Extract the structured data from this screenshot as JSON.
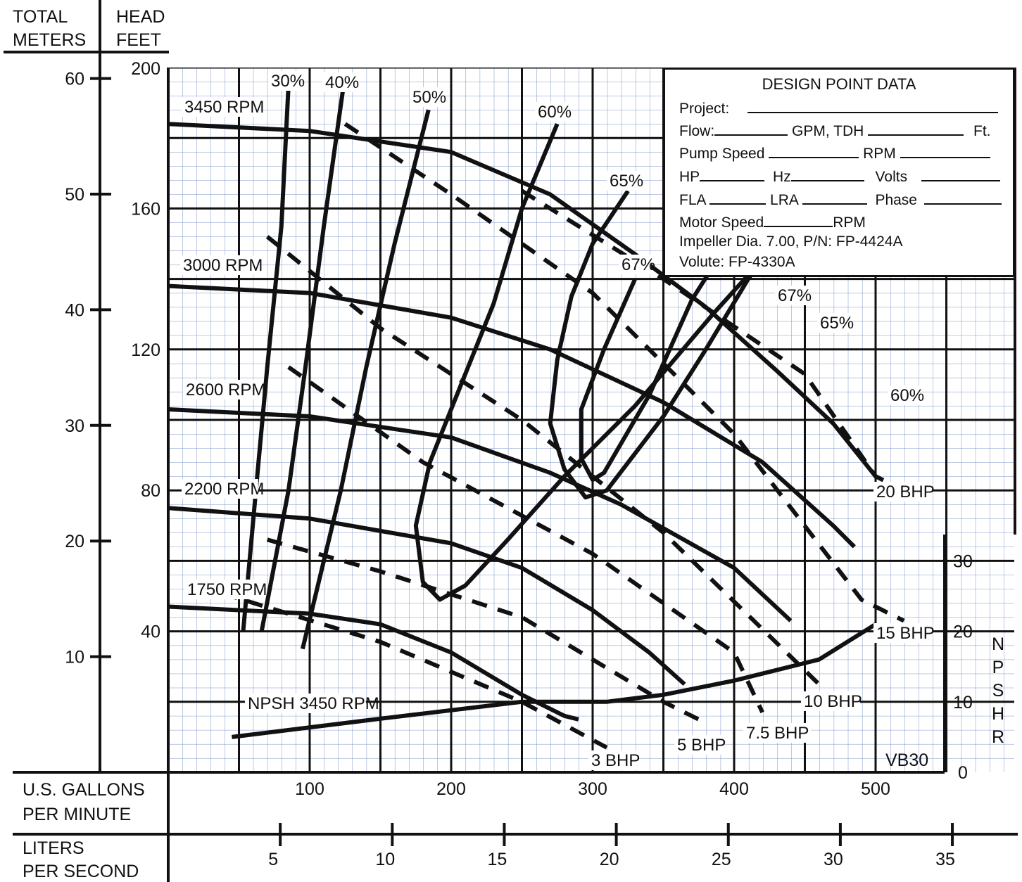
{
  "chart_data": {
    "type": "line",
    "header": {
      "left_axis_title": [
        "TOTAL",
        "METERS"
      ],
      "right_axis_title": [
        "HEAD",
        "FEET"
      ]
    },
    "x_axis": {
      "label": [
        "U.S. GALLONS",
        "PER MINUTE"
      ],
      "range": [
        0,
        550
      ],
      "ticks": [
        100,
        200,
        300,
        400,
        500
      ],
      "tick_labels": [
        "100",
        "200",
        "300",
        "400",
        "500"
      ]
    },
    "x2_axis": {
      "label": [
        "LITERS",
        "PER SECOND"
      ],
      "ticks": [
        5,
        10,
        15,
        20,
        25,
        30,
        35
      ],
      "tick_labels": [
        "5",
        "10",
        "15",
        "20",
        "25",
        "30",
        "35"
      ]
    },
    "y_axis_feet": {
      "range": [
        0,
        200
      ],
      "ticks": [
        40,
        80,
        120,
        160,
        200
      ],
      "tick_labels": [
        "40",
        "80",
        "120",
        "160",
        "200"
      ]
    },
    "y_axis_meters": {
      "ticks": [
        10,
        20,
        30,
        40,
        50,
        60
      ],
      "tick_labels": [
        "10",
        "20",
        "30",
        "40",
        "50",
        "60"
      ]
    },
    "npshr_axis": {
      "label": "NPSHR",
      "ticks": [
        0,
        10,
        20,
        30
      ],
      "tick_labels": [
        "0",
        "10",
        "20",
        "30"
      ]
    },
    "model": "VB30",
    "speed_curves": [
      {
        "name": "3450 RPM",
        "points": [
          [
            0,
            184
          ],
          [
            100,
            182
          ],
          [
            200,
            176
          ],
          [
            270,
            164
          ],
          [
            330,
            147
          ],
          [
            380,
            132
          ],
          [
            430,
            114
          ],
          [
            470,
            99
          ],
          [
            500,
            84
          ]
        ]
      },
      {
        "name": "3000 RPM",
        "points": [
          [
            0,
            138
          ],
          [
            100,
            136
          ],
          [
            200,
            129
          ],
          [
            270,
            120
          ],
          [
            350,
            105
          ],
          [
            420,
            88
          ],
          [
            470,
            70
          ],
          [
            485,
            64
          ]
        ]
      },
      {
        "name": "2600 RPM",
        "points": [
          [
            0,
            103
          ],
          [
            100,
            101
          ],
          [
            200,
            95
          ],
          [
            270,
            85
          ],
          [
            320,
            76
          ],
          [
            400,
            58
          ],
          [
            440,
            43
          ]
        ]
      },
      {
        "name": "2200 RPM",
        "points": [
          [
            0,
            75
          ],
          [
            100,
            72
          ],
          [
            200,
            65
          ],
          [
            250,
            58
          ],
          [
            300,
            46
          ],
          [
            340,
            34
          ],
          [
            365,
            25
          ]
        ]
      },
      {
        "name": "1750 RPM",
        "points": [
          [
            0,
            47
          ],
          [
            100,
            45
          ],
          [
            150,
            42
          ],
          [
            200,
            34
          ],
          [
            250,
            22
          ],
          [
            280,
            16
          ],
          [
            290,
            15
          ]
        ]
      }
    ],
    "efficiency_curves": [
      {
        "name": "30%",
        "points": [
          [
            85,
            195
          ],
          [
            80,
            155
          ],
          [
            70,
            115
          ],
          [
            62,
            80
          ],
          [
            53,
            40
          ]
        ]
      },
      {
        "name": "40%",
        "points": [
          [
            124,
            195
          ],
          [
            110,
            155
          ],
          [
            97,
            115
          ],
          [
            85,
            80
          ],
          [
            66,
            40
          ]
        ]
      },
      {
        "name": "50%",
        "points": [
          [
            184,
            188
          ],
          [
            160,
            150
          ],
          [
            140,
            115
          ],
          [
            122,
            80
          ],
          [
            95,
            35
          ]
        ]
      },
      {
        "name": "60%",
        "points": [
          [
            275,
            184
          ],
          [
            250,
            160
          ],
          [
            230,
            133
          ],
          [
            205,
            108
          ],
          [
            185,
            88
          ],
          [
            175,
            70
          ],
          [
            180,
            54
          ],
          [
            192,
            49
          ],
          [
            210,
            53
          ],
          [
            240,
            66
          ],
          [
            280,
            84
          ],
          [
            330,
            104
          ],
          [
            385,
            130
          ],
          [
            430,
            150
          ],
          [
            468,
            165
          ],
          [
            521,
            177
          ]
        ]
      },
      {
        "name": "65%",
        "points": [
          [
            325,
            165
          ],
          [
            300,
            150
          ],
          [
            285,
            135
          ],
          [
            275,
            117
          ],
          [
            270,
            99
          ],
          [
            280,
            86
          ],
          [
            295,
            78
          ],
          [
            310,
            80
          ],
          [
            350,
            101
          ],
          [
            380,
            120
          ],
          [
            410,
            140
          ],
          [
            438,
            156
          ],
          [
            460,
            174
          ]
        ]
      },
      {
        "name": "67%",
        "points": [
          [
            330,
            140
          ],
          [
            308,
            120
          ],
          [
            292,
            103
          ],
          [
            292,
            89
          ],
          [
            300,
            83
          ],
          [
            308,
            85
          ],
          [
            340,
            107
          ],
          [
            370,
            134
          ],
          [
            400,
            153
          ],
          [
            438,
            176
          ]
        ]
      }
    ],
    "power_lines": [
      {
        "name": "3 BHP",
        "points": [
          [
            20,
            53
          ],
          [
            150,
            37
          ],
          [
            250,
            20
          ],
          [
            310,
            7
          ]
        ]
      },
      {
        "name": "5 BHP",
        "points": [
          [
            70,
            66
          ],
          [
            150,
            57
          ],
          [
            250,
            44
          ],
          [
            350,
            20
          ],
          [
            380,
            14
          ]
        ]
      },
      {
        "name": "7.5 BHP",
        "points": [
          [
            85,
            115
          ],
          [
            180,
            88
          ],
          [
            300,
            62
          ],
          [
            400,
            34
          ],
          [
            420,
            17
          ]
        ]
      },
      {
        "name": "10 BHP",
        "points": [
          [
            70,
            152
          ],
          [
            150,
            126
          ],
          [
            250,
            100
          ],
          [
            350,
            68
          ],
          [
            460,
            25
          ]
        ]
      },
      {
        "name": "15 BHP",
        "points": [
          [
            125,
            184
          ],
          [
            200,
            164
          ],
          [
            300,
            136
          ],
          [
            400,
            96
          ],
          [
            490,
            49
          ],
          [
            520,
            43
          ]
        ]
      },
      {
        "name": "20 BHP",
        "points": [
          [
            250,
            165
          ],
          [
            350,
            140
          ],
          [
            450,
            113
          ],
          [
            500,
            84
          ],
          [
            520,
            80
          ]
        ]
      }
    ],
    "npsh_curve": {
      "name": "NPSH 3450 RPM",
      "npshr_points": [
        [
          45,
          5
        ],
        [
          150,
          7.6
        ],
        [
          250,
          10
        ],
        [
          310,
          10
        ],
        [
          350,
          11
        ],
        [
          400,
          13
        ],
        [
          440,
          15
        ],
        [
          460,
          16
        ],
        [
          500,
          21
        ]
      ]
    },
    "curve_labels": {
      "speed": [
        "3450 RPM",
        "3000 RPM",
        "2600 RPM",
        "2200 RPM",
        "1750 RPM"
      ],
      "eff_left": [
        "30%",
        "40%",
        "50%",
        "60%",
        "65%",
        "67%"
      ],
      "eff_right": [
        "67%",
        "65%",
        "60%"
      ],
      "power": [
        "3 BHP",
        "5 BHP",
        "7.5 BHP",
        "10 BHP",
        "15 BHP",
        "20 BHP"
      ],
      "npsh": "NPSH 3450 RPM"
    }
  },
  "design_point": {
    "title": "DESIGN POINT DATA",
    "project_label": "Project:",
    "flow_label": "Flow:",
    "gpm_tdh_label": "GPM, TDH",
    "ft_label": "Ft.",
    "pump_speed_label": "Pump Speed",
    "rpm_label": "RPM",
    "hp_label": "HP",
    "hz_label": "Hz",
    "volts_label": "Volts",
    "fla_label": "FLA",
    "lra_label": "LRA",
    "phase_label": "Phase",
    "motor_speed_label": "Motor Speed",
    "motor_rpm_label": "RPM",
    "impeller_text": "Impeller Dia.  7.00,    P/N:   FP-4424A",
    "volute_text": "Volute: FP-4330A"
  }
}
